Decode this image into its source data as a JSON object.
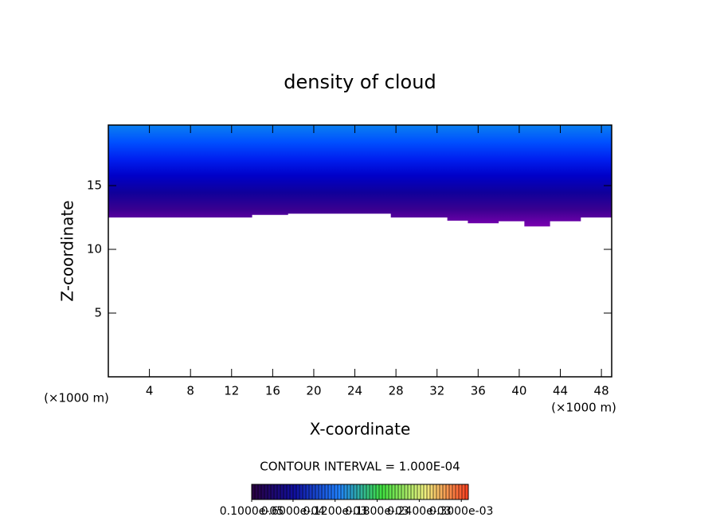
{
  "chart_data": {
    "type": "contour",
    "title": "density of cloud",
    "xlabel": "X-coordinate",
    "ylabel": "Z-coordinate",
    "x_units": [
      "(×1000 m)",
      "(×1000 m)"
    ],
    "annotation": "CONTOUR INTERVAL = 1.000E-04",
    "xlim": [
      0,
      49
    ],
    "xticks": [
      4,
      8,
      12,
      16,
      20,
      24,
      28,
      32,
      36,
      40,
      44,
      48
    ],
    "ylim": [
      0,
      19.75
    ],
    "yticks": [
      5,
      10,
      15
    ],
    "x": [
      0,
      14,
      14,
      17.5,
      17.5,
      27.5,
      27.5,
      33,
      33,
      35,
      35,
      38,
      38,
      40.5,
      40.5,
      43,
      43,
      46,
      46,
      49
    ],
    "cloud_base": [
      12.5,
      12.5,
      12.7,
      12.7,
      12.8,
      12.8,
      12.5,
      12.5,
      12.25,
      12.25,
      12.05,
      12.05,
      12.2,
      12.2,
      11.8,
      11.8,
      12.2,
      12.2,
      12.5,
      12.5
    ],
    "fill_colors": [
      "#7a00b0",
      "#3a0090",
      "#10009a",
      "#0000c8",
      "#0020f0",
      "#0050ff",
      "#0a80f0"
    ],
    "colorbar": {
      "lim": [
        1e-06,
        0.00031
      ],
      "colors": [
        "#2a0040",
        "#1010a0",
        "#2080ff",
        "#40e040",
        "#f0f080",
        "#ff4020"
      ],
      "ticks": [
        {
          "value": 1e-06,
          "label": "0.1000e-05"
        },
        {
          "value": 6e-05,
          "label": "0.6000e-04"
        },
        {
          "value": 0.00012,
          "label": "0.1200e-03"
        },
        {
          "value": 0.00018,
          "label": "0.1800e-03"
        },
        {
          "value": 0.00024,
          "label": "0.2400e-03"
        },
        {
          "value": 0.0003,
          "label": "0.3000e-03"
        }
      ]
    }
  }
}
